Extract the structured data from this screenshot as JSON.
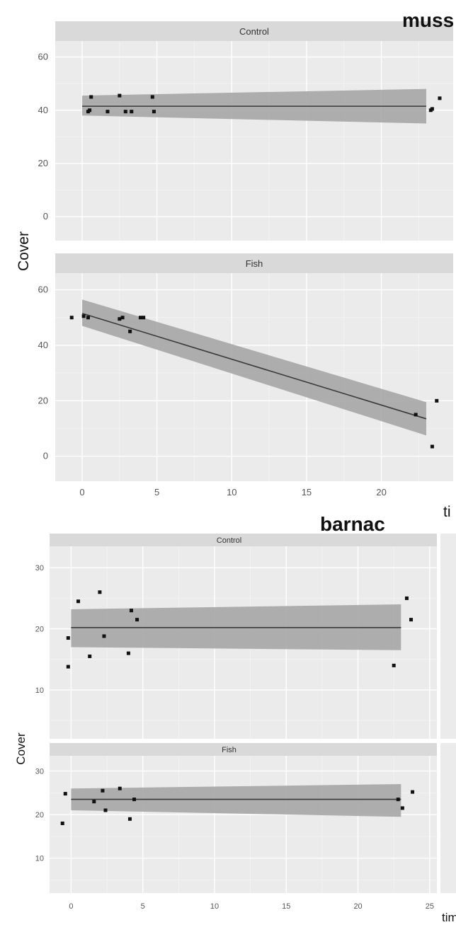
{
  "chart_data": [
    {
      "type": "scatter",
      "title": "muss",
      "xlabel": "ti",
      "ylabel": "Cover",
      "xlim": [
        -1.8,
        24.8
      ],
      "ylim": [
        -9,
        66
      ],
      "xticks": [
        0,
        5,
        10,
        15,
        20
      ],
      "yticks": [
        0,
        20,
        40,
        60
      ],
      "tick_labels_x": [
        "0",
        "5",
        "10",
        "15",
        "20"
      ],
      "tick_labels_y": [
        "0",
        "20",
        "40",
        "60"
      ],
      "grid": true,
      "facets": [
        {
          "label": "Control",
          "points": [
            [
              0.4,
              39.5
            ],
            [
              0.5,
              40
            ],
            [
              0.6,
              45
            ],
            [
              1.7,
              39.5
            ],
            [
              2.5,
              45.5
            ],
            [
              2.9,
              39.5
            ],
            [
              3.3,
              39.5
            ],
            [
              4.7,
              45
            ],
            [
              4.8,
              39.5
            ],
            [
              23.3,
              40
            ],
            [
              23.4,
              40.5
            ],
            [
              23.9,
              44.5
            ]
          ],
          "fit": {
            "x": [
              0,
              23
            ],
            "y": [
              41.5,
              41.5
            ]
          },
          "band": {
            "x": [
              0,
              23
            ],
            "lower": [
              38,
              35
            ],
            "upper": [
              45.5,
              48
            ]
          }
        },
        {
          "label": "Fish",
          "points": [
            [
              -0.7,
              50
            ],
            [
              0.1,
              50.5
            ],
            [
              0.4,
              50
            ],
            [
              2.5,
              49.5
            ],
            [
              2.7,
              50
            ],
            [
              3.2,
              45
            ],
            [
              3.9,
              50
            ],
            [
              4.1,
              50
            ],
            [
              22.3,
              15
            ],
            [
              23.4,
              3.5
            ],
            [
              23.7,
              20
            ]
          ],
          "fit": {
            "x": [
              0,
              23
            ],
            "y": [
              51.5,
              13.5
            ]
          },
          "band": {
            "x": [
              0,
              23
            ],
            "lower": [
              47,
              7.5
            ],
            "upper": [
              56.5,
              19.5
            ]
          }
        }
      ]
    },
    {
      "type": "scatter",
      "title": "barnac",
      "xlabel": "time",
      "ylabel": "Cover",
      "xlim": [
        -1.5,
        25.5
      ],
      "ylim": [
        2,
        33.5
      ],
      "xticks": [
        0,
        5,
        10,
        15,
        20,
        25
      ],
      "yticks": [
        10,
        20,
        30
      ],
      "tick_labels_x": [
        "0",
        "5",
        "10",
        "15",
        "20",
        "25"
      ],
      "tick_labels_y": [
        "10",
        "20",
        "30"
      ],
      "grid": true,
      "facets": [
        {
          "label": "Control",
          "points": [
            [
              -0.2,
              18.5
            ],
            [
              -0.2,
              13.8
            ],
            [
              0.5,
              24.5
            ],
            [
              1.3,
              15.5
            ],
            [
              2.0,
              26
            ],
            [
              2.3,
              18.8
            ],
            [
              4.0,
              16
            ],
            [
              4.2,
              23
            ],
            [
              4.6,
              21.5
            ],
            [
              22.5,
              14
            ],
            [
              23.4,
              25
            ],
            [
              23.7,
              21.5
            ]
          ],
          "fit": {
            "x": [
              0,
              23
            ],
            "y": [
              20.2,
              20.2
            ]
          },
          "band": {
            "x": [
              0,
              23
            ],
            "lower": [
              17,
              16.5
            ],
            "upper": [
              23.2,
              24
            ]
          }
        },
        {
          "label": "Fish",
          "points": [
            [
              -0.6,
              18
            ],
            [
              -0.4,
              24.8
            ],
            [
              1.6,
              23
            ],
            [
              2.2,
              25.5
            ],
            [
              2.4,
              21
            ],
            [
              3.4,
              26
            ],
            [
              4.1,
              19
            ],
            [
              4.4,
              23.5
            ],
            [
              22.8,
              23.5
            ],
            [
              23.1,
              21.5
            ],
            [
              23.8,
              25.2
            ]
          ],
          "fit": {
            "x": [
              0,
              23
            ],
            "y": [
              23.5,
              23.5
            ]
          },
          "band": {
            "x": [
              0,
              23
            ],
            "lower": [
              21,
              19.5
            ],
            "upper": [
              26,
              27
            ]
          }
        }
      ]
    }
  ]
}
